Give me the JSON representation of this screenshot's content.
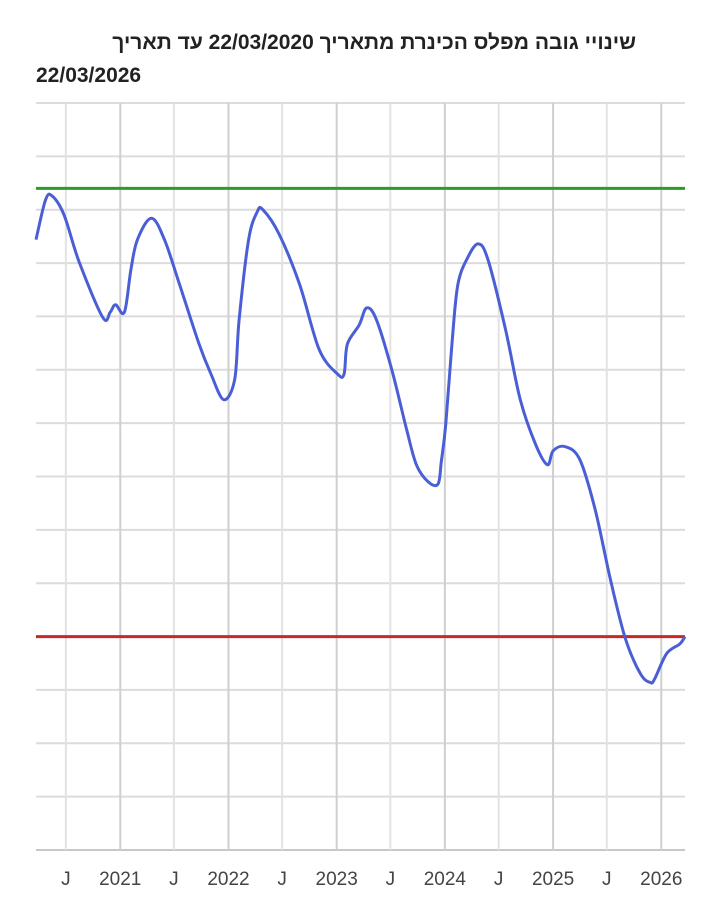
{
  "chart_data": {
    "type": "line",
    "title_line1": "שינויי גובה מפלס הכינרת מתאריך 22/03/2020 עד תאריך",
    "title_line2": "22/03/2026",
    "xlabel": "",
    "ylabel": "",
    "xlim": [
      "2020-03-22",
      "2026-03-22"
    ],
    "ylim": [
      -215,
      -208
    ],
    "y_grid_step": 0.5,
    "y_tick_labels_shown": false,
    "grid": true,
    "x_ticks": [
      {
        "date": "2020-07-01",
        "label": "J"
      },
      {
        "date": "2021-01-01",
        "label": "2021"
      },
      {
        "date": "2021-07-01",
        "label": "J"
      },
      {
        "date": "2022-01-01",
        "label": "2022"
      },
      {
        "date": "2022-07-01",
        "label": "J"
      },
      {
        "date": "2023-01-01",
        "label": "2023"
      },
      {
        "date": "2023-07-01",
        "label": "J"
      },
      {
        "date": "2024-01-01",
        "label": "2024"
      },
      {
        "date": "2024-07-01",
        "label": "J"
      },
      {
        "date": "2025-01-01",
        "label": "2025"
      },
      {
        "date": "2025-07-01",
        "label": "J"
      },
      {
        "date": "2026-01-01",
        "label": "2026"
      }
    ],
    "reference_lines": [
      {
        "value": -208.8,
        "color": "#2e9a2e"
      },
      {
        "value": -213.0,
        "color": "#c62828"
      }
    ],
    "series": [
      {
        "color": "#4a5fd6",
        "points": [
          [
            "2020-03-22",
            -209.28
          ],
          [
            "2020-04-23",
            -208.91
          ],
          [
            "2020-05-15",
            -208.87
          ],
          [
            "2020-06-25",
            -209.05
          ],
          [
            "2020-08-15",
            -209.49
          ],
          [
            "2020-11-03",
            -210.01
          ],
          [
            "2020-11-28",
            -209.96
          ],
          [
            "2020-12-16",
            -209.89
          ],
          [
            "2021-01-15",
            -209.96
          ],
          [
            "2021-02-06",
            -209.56
          ],
          [
            "2021-02-28",
            -209.28
          ],
          [
            "2021-04-16",
            -209.08
          ],
          [
            "2021-05-30",
            -209.28
          ],
          [
            "2021-07-20",
            -209.7
          ],
          [
            "2021-09-24",
            -210.26
          ],
          [
            "2021-11-03",
            -210.54
          ],
          [
            "2021-12-16",
            -210.78
          ],
          [
            "2022-01-22",
            -210.59
          ],
          [
            "2022-02-06",
            -210.03
          ],
          [
            "2022-03-10",
            -209.28
          ],
          [
            "2022-04-08",
            -209.02
          ],
          [
            "2022-04-27",
            -209.0
          ],
          [
            "2022-06-21",
            -209.23
          ],
          [
            "2022-08-29",
            -209.7
          ],
          [
            "2022-11-03",
            -210.31
          ],
          [
            "2023-01-04",
            -210.54
          ],
          [
            "2023-01-26",
            -210.54
          ],
          [
            "2023-02-06",
            -210.26
          ],
          [
            "2023-03-18",
            -210.08
          ],
          [
            "2023-04-12",
            -209.92
          ],
          [
            "2023-05-15",
            -210.03
          ],
          [
            "2023-07-06",
            -210.5
          ],
          [
            "2023-08-25",
            -211.06
          ],
          [
            "2023-09-27",
            -211.39
          ],
          [
            "2023-11-06",
            -211.55
          ],
          [
            "2023-12-09",
            -211.57
          ],
          [
            "2023-12-20",
            -211.36
          ],
          [
            "2024-01-04",
            -211.01
          ],
          [
            "2024-01-26",
            -210.22
          ],
          [
            "2024-02-14",
            -209.7
          ],
          [
            "2024-03-18",
            -209.45
          ],
          [
            "2024-04-23",
            -209.32
          ],
          [
            "2024-05-26",
            -209.47
          ],
          [
            "2024-07-24",
            -210.12
          ],
          [
            "2024-09-12",
            -210.78
          ],
          [
            "2024-11-03",
            -211.2
          ],
          [
            "2024-12-13",
            -211.39
          ],
          [
            "2025-01-01",
            -211.26
          ],
          [
            "2025-02-10",
            -211.22
          ],
          [
            "2025-04-01",
            -211.34
          ],
          [
            "2025-05-23",
            -211.81
          ],
          [
            "2025-07-13",
            -212.46
          ],
          [
            "2025-09-02",
            -213.02
          ],
          [
            "2025-10-23",
            -213.35
          ],
          [
            "2025-11-25",
            -213.43
          ],
          [
            "2025-12-09",
            -213.4
          ],
          [
            "2026-01-19",
            -213.16
          ],
          [
            "2026-03-04",
            -213.07
          ],
          [
            "2026-03-22",
            -213.0
          ]
        ]
      }
    ]
  }
}
